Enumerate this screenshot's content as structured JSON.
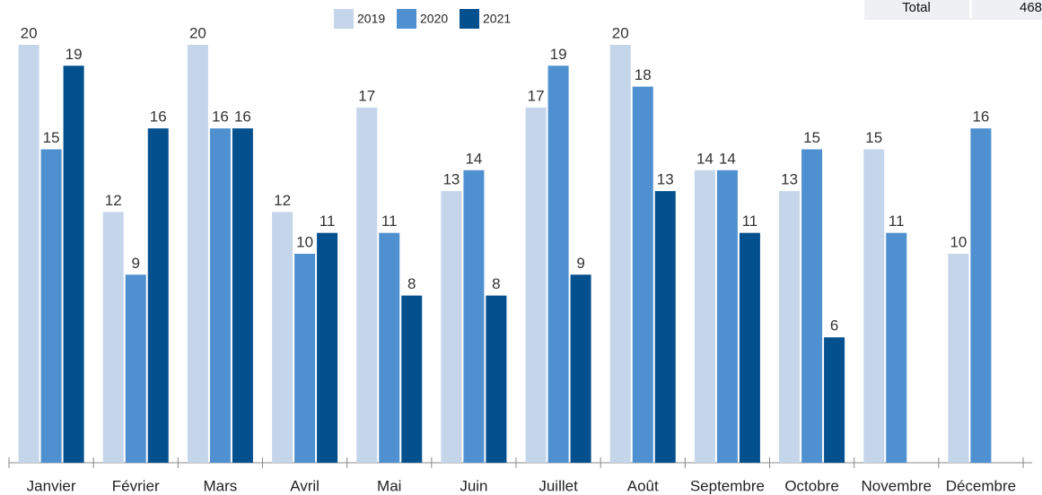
{
  "chart_data": {
    "type": "bar",
    "categories": [
      "Janvier",
      "Février",
      "Mars",
      "Avril",
      "Mai",
      "Juin",
      "Juillet",
      "Août",
      "Septembre",
      "Octobre",
      "Novembre",
      "Décembre"
    ],
    "series": [
      {
        "name": "2019",
        "color": "#c5d6eb",
        "values": [
          20,
          12,
          20,
          12,
          17,
          13,
          17,
          20,
          14,
          13,
          15,
          10
        ]
      },
      {
        "name": "2020",
        "color": "#4f91d0",
        "values": [
          15,
          9,
          16,
          10,
          11,
          14,
          19,
          18,
          14,
          15,
          11,
          16
        ]
      },
      {
        "name": "2021",
        "color": "#03508f",
        "values": [
          19,
          16,
          16,
          11,
          8,
          8,
          9,
          13,
          11,
          6,
          null,
          null
        ]
      }
    ],
    "ylim": [
      0,
      20
    ],
    "legend": "top"
  },
  "total_table": {
    "label": "Total",
    "value": 468
  }
}
